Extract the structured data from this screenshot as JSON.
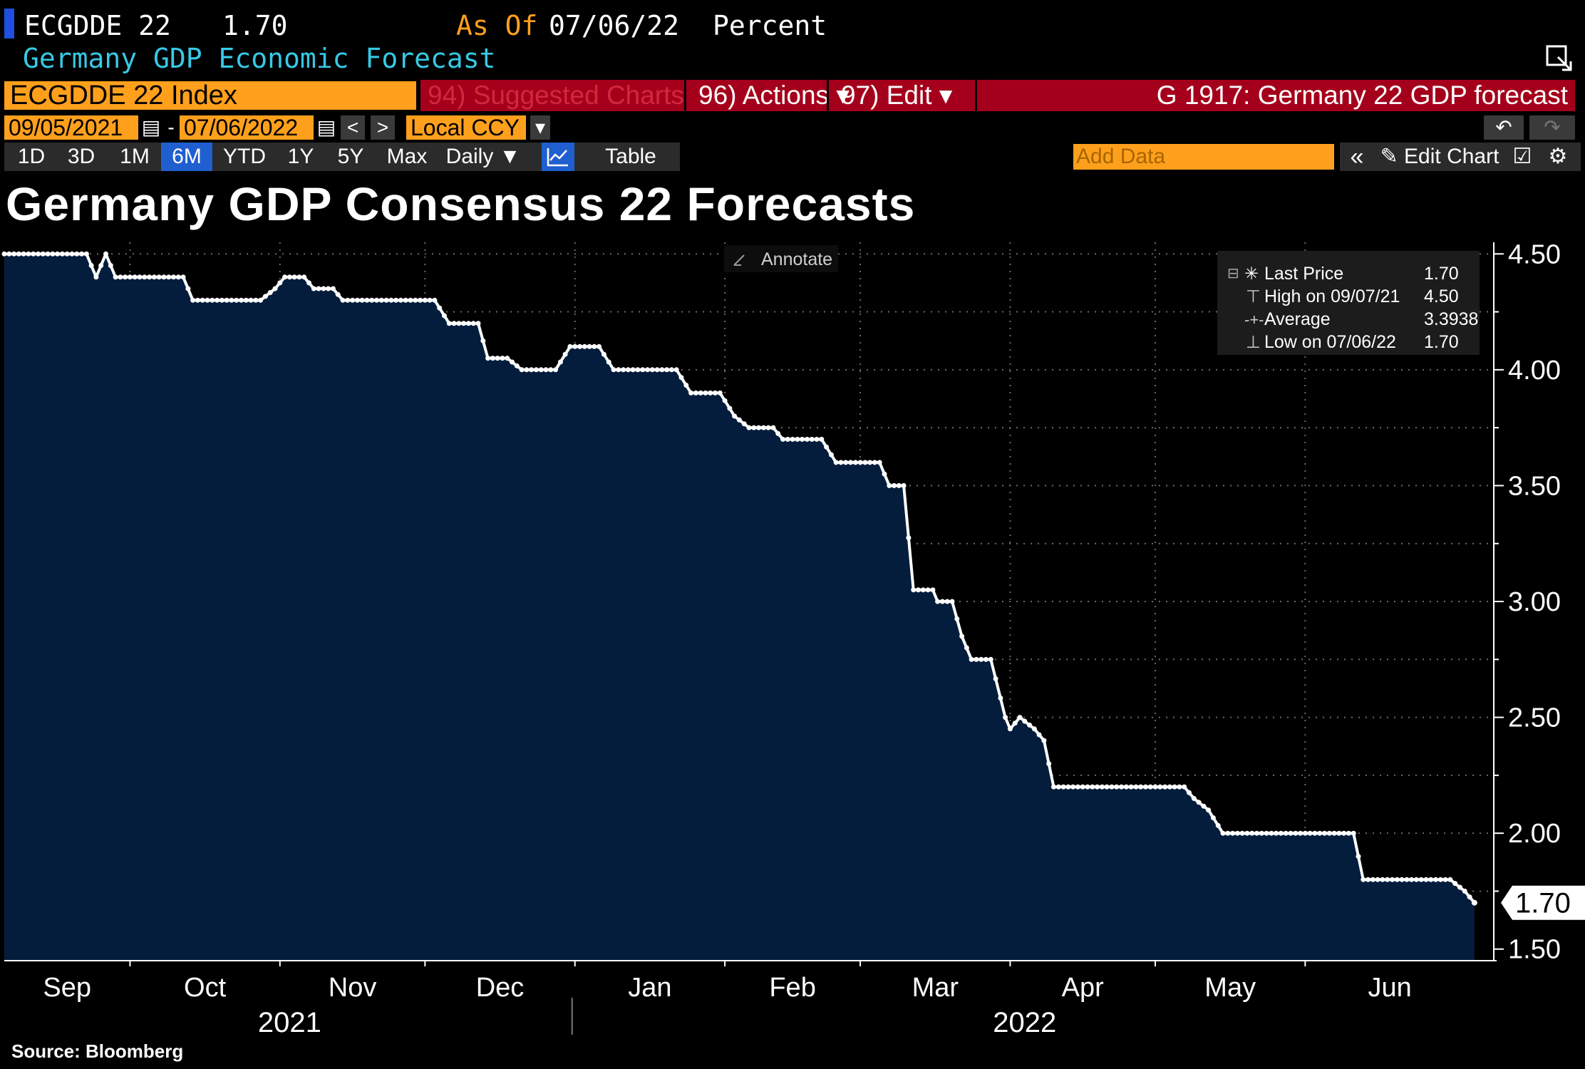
{
  "header": {
    "ticker": "ECGDDE 22",
    "last_value": "1.70",
    "as_of_label": "As Of",
    "as_of_date": "07/06/22",
    "units": "Percent",
    "description": "Germany GDP Economic Forecast"
  },
  "toolbar": {
    "security": "ECGDDE 22 Index",
    "suggested_charts": "94) Suggested Charts",
    "actions": "96) Actions ▾",
    "edit": "97) Edit ▾",
    "chart_id": "G 1917: Germany 22 GDP forecast",
    "start_date": "09/05/2021",
    "date_sep": "-",
    "end_date": "07/06/2022",
    "prev": "<",
    "next": ">",
    "currency": "Local CCY",
    "undo": "↶",
    "redo": "↷",
    "periods": [
      "1D",
      "3D",
      "1M",
      "6M",
      "YTD",
      "1Y",
      "5Y",
      "Max"
    ],
    "active_period": "6M",
    "frequency": "Daily ▼",
    "table": "Table",
    "add_data_placeholder": "Add Data",
    "collapse": "«",
    "edit_chart": "✎ Edit Chart"
  },
  "colors": {
    "background": "#000000",
    "area_fill": "#051d3c",
    "line": "#ffffff",
    "orange": "#ffa01c",
    "red": "#a5001b",
    "cyan": "#37c9e6",
    "blue": "#1f5fd0"
  },
  "chart_data": {
    "type": "area",
    "title": "Germany GDP Consensus 22 Forecasts",
    "source": "Source: Bloomberg",
    "annotate_label": "Annotate",
    "last_value_label": "1.70",
    "xlabel": "",
    "ylabel": "",
    "ylim": [
      1.45,
      4.55
    ],
    "yticks": [
      1.5,
      2.0,
      2.5,
      3.0,
      3.5,
      4.0,
      4.5
    ],
    "ytick_labels": [
      "1.50",
      "2.00",
      "2.50",
      "3.00",
      "3.50",
      "4.00",
      "4.50"
    ],
    "x_range": [
      "2021-09-05",
      "2022-07-10"
    ],
    "x_months": [
      {
        "label": "Sep",
        "date": "2021-09-05"
      },
      {
        "label": "Oct",
        "date": "2021-10-01"
      },
      {
        "label": "Nov",
        "date": "2021-11-01"
      },
      {
        "label": "Dec",
        "date": "2021-12-01"
      },
      {
        "label": "Jan",
        "date": "2022-01-01"
      },
      {
        "label": "Feb",
        "date": "2022-02-01"
      },
      {
        "label": "Mar",
        "date": "2022-03-01"
      },
      {
        "label": "Apr",
        "date": "2022-04-01"
      },
      {
        "label": "May",
        "date": "2022-05-01"
      },
      {
        "label": "Jun",
        "date": "2022-06-01"
      }
    ],
    "x_years": [
      {
        "label": "2021",
        "date": "2021-11-01"
      },
      {
        "label": "2022",
        "date": "2022-04-01"
      }
    ],
    "legend": {
      "position": "top-right",
      "entries": [
        {
          "label": "Last Price",
          "value": "1.70"
        },
        {
          "label": "High on 09/07/21",
          "value": "4.50"
        },
        {
          "label": "Average",
          "value": "3.3938"
        },
        {
          "label": "Low on 07/06/22",
          "value": "1.70"
        }
      ]
    },
    "series": [
      {
        "name": "ECGDDE 22 Index",
        "points": [
          [
            "2021-09-05",
            4.5
          ],
          [
            "2021-09-22",
            4.5
          ],
          [
            "2021-09-24",
            4.4
          ],
          [
            "2021-09-26",
            4.5
          ],
          [
            "2021-09-28",
            4.4
          ],
          [
            "2021-10-12",
            4.4
          ],
          [
            "2021-10-14",
            4.3
          ],
          [
            "2021-10-28",
            4.3
          ],
          [
            "2021-10-31",
            4.35
          ],
          [
            "2021-11-02",
            4.4
          ],
          [
            "2021-11-06",
            4.4
          ],
          [
            "2021-11-08",
            4.35
          ],
          [
            "2021-11-12",
            4.35
          ],
          [
            "2021-11-14",
            4.3
          ],
          [
            "2021-12-03",
            4.3
          ],
          [
            "2021-12-06",
            4.2
          ],
          [
            "2021-12-12",
            4.2
          ],
          [
            "2021-12-14",
            4.05
          ],
          [
            "2021-12-18",
            4.05
          ],
          [
            "2021-12-21",
            4.0
          ],
          [
            "2021-12-28",
            4.0
          ],
          [
            "2021-12-31",
            4.1
          ],
          [
            "2022-01-06",
            4.1
          ],
          [
            "2022-01-09",
            4.0
          ],
          [
            "2022-01-22",
            4.0
          ],
          [
            "2022-01-25",
            3.9
          ],
          [
            "2022-01-31",
            3.9
          ],
          [
            "2022-02-03",
            3.8
          ],
          [
            "2022-02-06",
            3.75
          ],
          [
            "2022-02-11",
            3.75
          ],
          [
            "2022-02-13",
            3.7
          ],
          [
            "2022-02-21",
            3.7
          ],
          [
            "2022-02-24",
            3.6
          ],
          [
            "2022-03-05",
            3.6
          ],
          [
            "2022-03-07",
            3.5
          ],
          [
            "2022-03-10",
            3.5
          ],
          [
            "2022-03-12",
            3.05
          ],
          [
            "2022-03-16",
            3.05
          ],
          [
            "2022-03-17",
            3.0
          ],
          [
            "2022-03-20",
            3.0
          ],
          [
            "2022-03-22",
            2.85
          ],
          [
            "2022-03-24",
            2.75
          ],
          [
            "2022-03-28",
            2.75
          ],
          [
            "2022-03-31",
            2.5
          ],
          [
            "2022-04-01",
            2.45
          ],
          [
            "2022-04-03",
            2.5
          ],
          [
            "2022-04-06",
            2.45
          ],
          [
            "2022-04-08",
            2.4
          ],
          [
            "2022-04-10",
            2.2
          ],
          [
            "2022-05-07",
            2.2
          ],
          [
            "2022-05-09",
            2.15
          ],
          [
            "2022-05-12",
            2.1
          ],
          [
            "2022-05-15",
            2.0
          ],
          [
            "2022-06-11",
            2.0
          ],
          [
            "2022-06-13",
            1.8
          ],
          [
            "2022-07-01",
            1.8
          ],
          [
            "2022-07-04",
            1.75
          ],
          [
            "2022-07-06",
            1.7
          ]
        ]
      }
    ]
  }
}
